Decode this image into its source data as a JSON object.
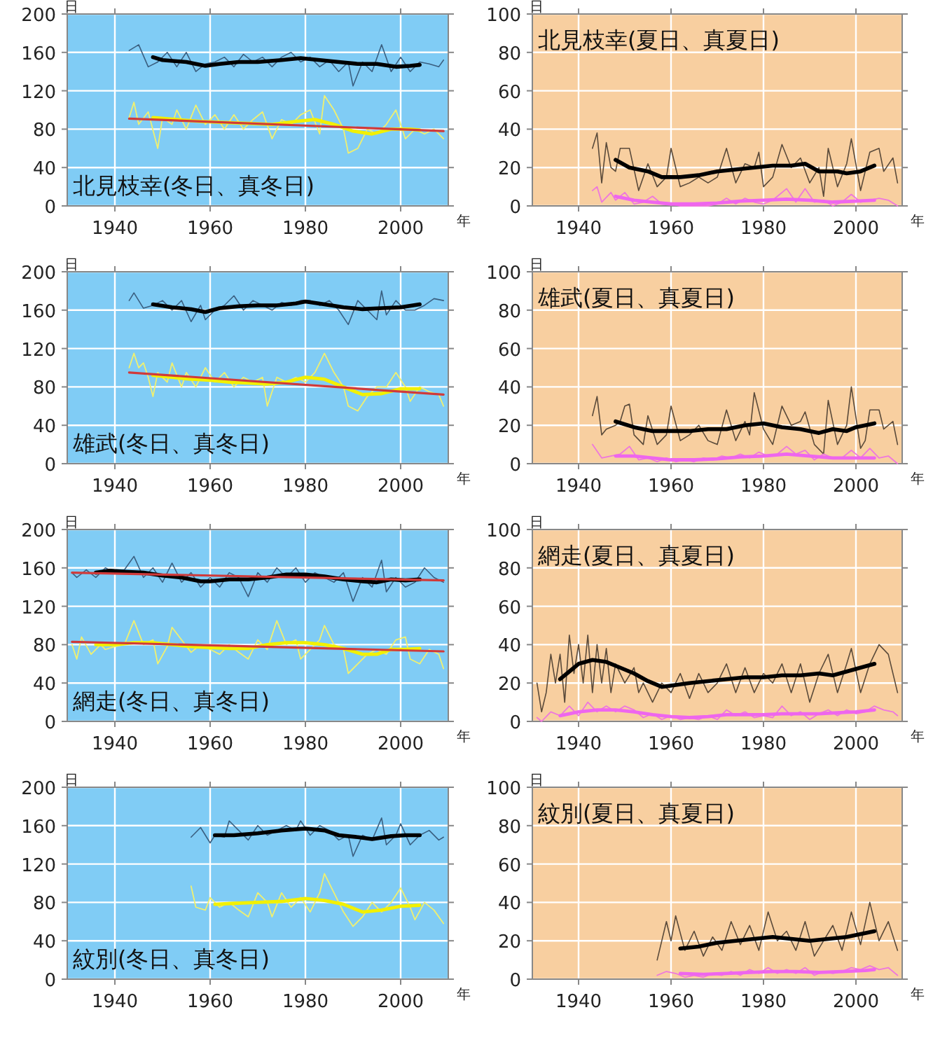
{
  "chart_data": [
    {
      "type": "line",
      "title": "北見枝幸(冬日、真冬日)",
      "xlabel": "年",
      "ylabel": "日",
      "xlim": [
        1930,
        2010
      ],
      "xticks": [
        1940,
        1960,
        1980,
        2000
      ],
      "ylim": [
        0,
        200
      ],
      "yticks": [
        0,
        40,
        80,
        120,
        160,
        200
      ],
      "grid": true,
      "series": [
        {
          "color": "#3a5f80",
          "x": [
            1943,
            1945,
            1947,
            1949,
            1951,
            1953,
            1955,
            1957,
            1959,
            1961,
            1963,
            1965,
            1967,
            1969,
            1971,
            1973,
            1975,
            1977,
            1979,
            1981,
            1983,
            1985,
            1987,
            1989,
            1990,
            1992,
            1994,
            1996,
            1998,
            2000,
            2002,
            2004,
            2006,
            2008,
            2009
          ],
          "values": [
            162,
            168,
            145,
            150,
            160,
            145,
            160,
            140,
            148,
            150,
            155,
            145,
            158,
            150,
            155,
            145,
            155,
            160,
            150,
            155,
            145,
            152,
            140,
            150,
            125,
            150,
            140,
            168,
            140,
            155,
            140,
            150,
            148,
            145,
            152
          ]
        },
        {
          "color": "#000000",
          "x": [
            1948,
            1950,
            1955,
            1959,
            1962,
            1966,
            1970,
            1975,
            1979,
            1983,
            1987,
            1991,
            1995,
            1999,
            2002,
            2004
          ],
          "values": [
            155,
            152,
            150,
            146,
            148,
            150,
            150,
            152,
            154,
            152,
            150,
            148,
            148,
            145,
            146,
            147
          ]
        },
        {
          "color": "#f0f070",
          "x": [
            1943,
            1944,
            1945,
            1947,
            1949,
            1950,
            1952,
            1953,
            1955,
            1957,
            1959,
            1961,
            1963,
            1965,
            1967,
            1969,
            1971,
            1973,
            1975,
            1977,
            1979,
            1981,
            1983,
            1984,
            1986,
            1988,
            1989,
            1991,
            1993,
            1995,
            1997,
            1999,
            2001,
            2003,
            2005,
            2007,
            2009
          ],
          "values": [
            92,
            108,
            85,
            98,
            60,
            92,
            85,
            100,
            80,
            105,
            85,
            95,
            80,
            95,
            80,
            90,
            98,
            70,
            90,
            85,
            95,
            100,
            75,
            115,
            100,
            80,
            55,
            60,
            80,
            75,
            85,
            100,
            70,
            80,
            75,
            80,
            70
          ]
        },
        {
          "color": "#f2f000",
          "x": [
            1948,
            1953,
            1958,
            1963,
            1968,
            1973,
            1978,
            1982,
            1986,
            1990,
            1994,
            1998,
            2002,
            2004
          ],
          "values": [
            92,
            90,
            88,
            87,
            86,
            85,
            88,
            90,
            85,
            78,
            75,
            80,
            80,
            79
          ]
        },
        {
          "color": "#d03a3a",
          "x": [
            1943,
            2009
          ],
          "values": [
            91,
            78
          ]
        }
      ]
    },
    {
      "type": "line",
      "title": "北見枝幸(夏日、真夏日)",
      "xlabel": "年",
      "ylabel": "日",
      "xlim": [
        1930,
        2010
      ],
      "xticks": [
        1940,
        1960,
        1980,
        2000
      ],
      "ylim": [
        0,
        100
      ],
      "yticks": [
        0,
        20,
        40,
        60,
        80,
        100
      ],
      "grid": true,
      "series": [
        {
          "color": "#5a4a3a",
          "x": [
            1943,
            1944,
            1945,
            1946,
            1947,
            1948,
            1949,
            1951,
            1953,
            1955,
            1957,
            1959,
            1960,
            1962,
            1964,
            1966,
            1968,
            1970,
            1972,
            1974,
            1976,
            1978,
            1979,
            1980,
            1982,
            1984,
            1986,
            1988,
            1990,
            1992,
            1993,
            1994,
            1996,
            1998,
            1999,
            2001,
            2003,
            2005,
            2006,
            2008,
            2009
          ],
          "values": [
            30,
            38,
            12,
            33,
            20,
            18,
            30,
            30,
            8,
            22,
            10,
            15,
            30,
            10,
            12,
            15,
            12,
            15,
            30,
            12,
            22,
            20,
            28,
            10,
            15,
            32,
            20,
            25,
            12,
            20,
            5,
            30,
            10,
            22,
            35,
            8,
            28,
            30,
            18,
            25,
            12
          ]
        },
        {
          "color": "#000000",
          "x": [
            1948,
            1951,
            1955,
            1958,
            1962,
            1966,
            1970,
            1974,
            1978,
            1982,
            1986,
            1989,
            1992,
            1996,
            1998,
            2001,
            2004
          ],
          "values": [
            24,
            20,
            18,
            15,
            15,
            16,
            18,
            19,
            20,
            21,
            21,
            22,
            18,
            18,
            17,
            18,
            21
          ]
        },
        {
          "color": "#ee77dd",
          "x": [
            1943,
            1944,
            1945,
            1947,
            1948,
            1950,
            1952,
            1954,
            1956,
            1958,
            1960,
            1962,
            1964,
            1966,
            1968,
            1970,
            1972,
            1974,
            1976,
            1978,
            1980,
            1982,
            1985,
            1987,
            1989,
            1991,
            1993,
            1995,
            1997,
            1999,
            2001,
            2003,
            2005,
            2007,
            2009
          ],
          "values": [
            8,
            10,
            2,
            7,
            3,
            7,
            1,
            2,
            5,
            1,
            1,
            0,
            0,
            0,
            0,
            1,
            4,
            1,
            4,
            2,
            1,
            3,
            9,
            2,
            9,
            2,
            3,
            0,
            2,
            6,
            2,
            3,
            4,
            3,
            0
          ]
        },
        {
          "color": "#ee66ee",
          "x": [
            1948,
            1952,
            1956,
            1960,
            1965,
            1970,
            1975,
            1980,
            1985,
            1990,
            1995,
            2000,
            2004
          ],
          "values": [
            5,
            3,
            2,
            1,
            1,
            1.5,
            2.5,
            3,
            3.5,
            3,
            2,
            2.5,
            3
          ]
        }
      ]
    },
    {
      "type": "line",
      "title": "雄武(冬日、真冬日)",
      "xlabel": "年",
      "ylabel": "日",
      "xlim": [
        1930,
        2010
      ],
      "xticks": [
        1940,
        1960,
        1980,
        2000
      ],
      "ylim": [
        0,
        200
      ],
      "yticks": [
        0,
        40,
        80,
        120,
        160,
        200
      ],
      "grid": true,
      "series": [
        {
          "color": "#3a5f80",
          "x": [
            1943,
            1944,
            1946,
            1948,
            1950,
            1952,
            1954,
            1956,
            1958,
            1959,
            1961,
            1963,
            1965,
            1967,
            1969,
            1971,
            1973,
            1975,
            1977,
            1979,
            1981,
            1983,
            1985,
            1987,
            1989,
            1991,
            1993,
            1995,
            1996,
            1997,
            1999,
            2001,
            2003,
            2005,
            2007,
            2009
          ],
          "values": [
            170,
            178,
            162,
            165,
            170,
            160,
            170,
            148,
            165,
            150,
            160,
            165,
            175,
            160,
            170,
            165,
            160,
            168,
            165,
            170,
            170,
            165,
            170,
            160,
            145,
            170,
            160,
            150,
            180,
            155,
            170,
            160,
            160,
            165,
            172,
            170
          ]
        },
        {
          "color": "#000000",
          "x": [
            1948,
            1952,
            1956,
            1959,
            1962,
            1966,
            1970,
            1974,
            1978,
            1980,
            1984,
            1988,
            1992,
            1996,
            2000,
            2004
          ],
          "values": [
            166,
            163,
            161,
            158,
            162,
            164,
            165,
            165,
            167,
            169,
            166,
            163,
            161,
            162,
            163,
            166
          ]
        },
        {
          "color": "#f0f070",
          "x": [
            1943,
            1944,
            1945,
            1946,
            1947,
            1948,
            1949,
            1951,
            1952,
            1954,
            1955,
            1957,
            1959,
            1961,
            1963,
            1965,
            1967,
            1969,
            1971,
            1972,
            1974,
            1976,
            1978,
            1980,
            1982,
            1984,
            1986,
            1988,
            1989,
            1991,
            1993,
            1995,
            1997,
            1999,
            2001,
            2002,
            2004,
            2006,
            2008,
            2009
          ],
          "values": [
            100,
            115,
            100,
            105,
            90,
            70,
            95,
            85,
            105,
            80,
            95,
            80,
            100,
            85,
            95,
            80,
            90,
            85,
            90,
            60,
            90,
            85,
            90,
            85,
            95,
            115,
            95,
            80,
            60,
            55,
            70,
            80,
            80,
            95,
            80,
            65,
            80,
            75,
            72,
            60
          ]
        },
        {
          "color": "#f2f000",
          "x": [
            1948,
            1952,
            1956,
            1960,
            1964,
            1968,
            1972,
            1976,
            1980,
            1984,
            1988,
            1992,
            1996,
            2000,
            2004
          ],
          "values": [
            92,
            90,
            88,
            87,
            85,
            84,
            83,
            85,
            90,
            88,
            80,
            72,
            73,
            78,
            78
          ]
        },
        {
          "color": "#d03a3a",
          "x": [
            1943,
            2009
          ],
          "values": [
            95,
            72
          ]
        }
      ]
    },
    {
      "type": "line",
      "title": "雄武(夏日、真夏日)",
      "xlabel": "年",
      "ylabel": "日",
      "xlim": [
        1930,
        2010
      ],
      "xticks": [
        1940,
        1960,
        1980,
        2000
      ],
      "ylim": [
        0,
        100
      ],
      "yticks": [
        0,
        20,
        40,
        60,
        80,
        100
      ],
      "grid": true,
      "series": [
        {
          "color": "#5a4a3a",
          "x": [
            1943,
            1944,
            1945,
            1946,
            1948,
            1949,
            1950,
            1951,
            1952,
            1954,
            1955,
            1957,
            1959,
            1960,
            1962,
            1964,
            1966,
            1968,
            1970,
            1972,
            1974,
            1976,
            1977,
            1978,
            1980,
            1982,
            1984,
            1986,
            1988,
            1989,
            1991,
            1993,
            1994,
            1996,
            1998,
            1999,
            2001,
            2002,
            2003,
            2005,
            2006,
            2008,
            2009
          ],
          "values": [
            25,
            35,
            15,
            18,
            20,
            22,
            30,
            31,
            15,
            10,
            25,
            10,
            15,
            30,
            12,
            15,
            20,
            12,
            10,
            28,
            12,
            22,
            15,
            37,
            18,
            10,
            30,
            20,
            22,
            27,
            10,
            5,
            33,
            10,
            20,
            40,
            8,
            12,
            28,
            28,
            18,
            22,
            10
          ]
        },
        {
          "color": "#000000",
          "x": [
            1948,
            1952,
            1956,
            1960,
            1964,
            1968,
            1972,
            1976,
            1980,
            1984,
            1988,
            1992,
            1995,
            1998,
            2000,
            2004
          ],
          "values": [
            22,
            19,
            17,
            17,
            17,
            18,
            18,
            20,
            21,
            19,
            18,
            16,
            18,
            17,
            19,
            21
          ]
        },
        {
          "color": "#ee77dd",
          "x": [
            1943,
            1945,
            1947,
            1949,
            1951,
            1953,
            1955,
            1957,
            1959,
            1961,
            1963,
            1965,
            1967,
            1969,
            1971,
            1973,
            1975,
            1977,
            1979,
            1981,
            1983,
            1985,
            1987,
            1989,
            1991,
            1993,
            1995,
            1997,
            1999,
            2001,
            2003,
            2005,
            2007,
            2009
          ],
          "values": [
            10,
            3,
            4,
            5,
            9,
            2,
            3,
            1,
            3,
            1,
            2,
            1,
            3,
            2,
            4,
            3,
            5,
            3,
            6,
            4,
            5,
            9,
            5,
            7,
            2,
            5,
            3,
            3,
            7,
            3,
            8,
            3,
            4,
            0
          ]
        },
        {
          "color": "#ee66ee",
          "x": [
            1948,
            1952,
            1956,
            1960,
            1965,
            1970,
            1975,
            1980,
            1985,
            1990,
            1995,
            2000,
            2004
          ],
          "values": [
            4,
            4,
            3,
            2,
            2,
            2.5,
            3.5,
            4,
            5,
            4,
            3,
            3,
            3
          ]
        }
      ]
    },
    {
      "type": "line",
      "title": "網走(冬日、真冬日)",
      "xlabel": "年",
      "ylabel": "日",
      "xlim": [
        1930,
        2010
      ],
      "xticks": [
        1940,
        1960,
        1980,
        2000
      ],
      "ylim": [
        0,
        200
      ],
      "yticks": [
        0,
        40,
        80,
        120,
        160,
        200
      ],
      "grid": true,
      "series": [
        {
          "color": "#3a5f80",
          "x": [
            1931,
            1932,
            1934,
            1936,
            1938,
            1940,
            1942,
            1943,
            1944,
            1946,
            1948,
            1950,
            1952,
            1954,
            1956,
            1958,
            1960,
            1962,
            1964,
            1966,
            1968,
            1970,
            1972,
            1974,
            1976,
            1978,
            1980,
            1982,
            1984,
            1986,
            1988,
            1990,
            1992,
            1994,
            1996,
            1997,
            1999,
            2001,
            2003,
            2005,
            2007,
            2009
          ],
          "values": [
            155,
            150,
            158,
            150,
            160,
            155,
            158,
            165,
            172,
            150,
            160,
            145,
            165,
            145,
            155,
            140,
            150,
            140,
            155,
            150,
            130,
            155,
            145,
            160,
            150,
            160,
            145,
            155,
            150,
            145,
            155,
            125,
            150,
            140,
            168,
            135,
            150,
            140,
            145,
            160,
            150,
            145
          ]
        },
        {
          "color": "#000000",
          "x": [
            1936,
            1939,
            1942,
            1946,
            1950,
            1954,
            1958,
            1960,
            1964,
            1968,
            1972,
            1976,
            1980,
            1984,
            1988,
            1992,
            1995,
            1998,
            2001,
            2004
          ],
          "values": [
            155,
            157,
            156,
            155,
            152,
            150,
            146,
            146,
            148,
            148,
            150,
            153,
            153,
            151,
            148,
            146,
            145,
            148,
            147,
            148
          ]
        },
        {
          "color": "#f0f070",
          "x": [
            1931,
            1932,
            1933,
            1935,
            1937,
            1938,
            1940,
            1942,
            1944,
            1946,
            1948,
            1949,
            1951,
            1952,
            1954,
            1956,
            1958,
            1960,
            1962,
            1964,
            1966,
            1968,
            1970,
            1972,
            1974,
            1976,
            1978,
            1979,
            1981,
            1983,
            1984,
            1986,
            1988,
            1989,
            1991,
            1993,
            1995,
            1997,
            1999,
            2001,
            2002,
            2004,
            2006,
            2008,
            2009
          ],
          "values": [
            80,
            65,
            88,
            70,
            80,
            75,
            78,
            80,
            105,
            80,
            85,
            60,
            78,
            98,
            85,
            72,
            80,
            75,
            70,
            80,
            72,
            65,
            85,
            75,
            105,
            80,
            85,
            65,
            75,
            85,
            100,
            80,
            75,
            50,
            60,
            70,
            75,
            70,
            85,
            88,
            65,
            60,
            75,
            70,
            55
          ]
        },
        {
          "color": "#f2f000",
          "x": [
            1936,
            1940,
            1944,
            1948,
            1952,
            1956,
            1960,
            1964,
            1968,
            1972,
            1976,
            1980,
            1984,
            1988,
            1992,
            1995,
            1998,
            2001,
            2004
          ],
          "values": [
            80,
            80,
            82,
            82,
            80,
            78,
            77,
            76,
            76,
            80,
            82,
            82,
            80,
            76,
            70,
            70,
            75,
            75,
            76
          ]
        },
        {
          "color": "#d03a3a",
          "x": [
            1931,
            2009
          ],
          "values": [
            155,
            147
          ]
        },
        {
          "color": "#d03a3a",
          "x": [
            1931,
            2009
          ],
          "values": [
            83,
            73
          ]
        }
      ]
    },
    {
      "type": "line",
      "title": "網走(夏日、真夏日)",
      "xlabel": "年",
      "ylabel": "日",
      "xlim": [
        1930,
        2010
      ],
      "xticks": [
        1940,
        1960,
        1980,
        2000
      ],
      "ylim": [
        0,
        100
      ],
      "yticks": [
        0,
        20,
        40,
        60,
        80,
        100
      ],
      "grid": true,
      "series": [
        {
          "color": "#5a4a3a",
          "x": [
            1931,
            1932,
            1933,
            1934,
            1935,
            1936,
            1937,
            1938,
            1939,
            1940,
            1941,
            1942,
            1943,
            1944,
            1945,
            1946,
            1947,
            1948,
            1950,
            1952,
            1953,
            1954,
            1956,
            1958,
            1960,
            1962,
            1964,
            1966,
            1968,
            1970,
            1972,
            1974,
            1976,
            1978,
            1980,
            1982,
            1984,
            1986,
            1988,
            1990,
            1992,
            1994,
            1996,
            1998,
            1999,
            2001,
            2003,
            2005,
            2007,
            2009
          ],
          "values": [
            20,
            5,
            15,
            35,
            20,
            35,
            10,
            45,
            25,
            40,
            20,
            45,
            15,
            40,
            20,
            38,
            15,
            30,
            20,
            28,
            15,
            20,
            10,
            20,
            15,
            25,
            12,
            25,
            15,
            20,
            30,
            15,
            28,
            15,
            25,
            20,
            30,
            15,
            30,
            10,
            25,
            35,
            15,
            30,
            38,
            15,
            30,
            40,
            35,
            15
          ]
        },
        {
          "color": "#000000",
          "x": [
            1936,
            1938,
            1940,
            1943,
            1946,
            1949,
            1952,
            1955,
            1958,
            1961,
            1964,
            1968,
            1972,
            1976,
            1980,
            1984,
            1988,
            1992,
            1995,
            1998,
            2001,
            2004
          ],
          "values": [
            22,
            26,
            30,
            32,
            31,
            28,
            25,
            21,
            18,
            19,
            20,
            21,
            22,
            23,
            23,
            24,
            24,
            25,
            24,
            26,
            28,
            30
          ]
        },
        {
          "color": "#ee77dd",
          "x": [
            1931,
            1932,
            1934,
            1936,
            1938,
            1940,
            1942,
            1944,
            1946,
            1948,
            1950,
            1952,
            1954,
            1956,
            1958,
            1960,
            1962,
            1964,
            1966,
            1968,
            1970,
            1972,
            1974,
            1976,
            1978,
            1980,
            1982,
            1984,
            1986,
            1988,
            1990,
            1992,
            1994,
            1996,
            1998,
            2000,
            2002,
            2004,
            2006,
            2008,
            2009
          ],
          "values": [
            2,
            0,
            5,
            3,
            8,
            3,
            10,
            5,
            8,
            5,
            8,
            6,
            2,
            4,
            1,
            3,
            1,
            2,
            1,
            3,
            1,
            6,
            3,
            5,
            2,
            3,
            2,
            8,
            3,
            5,
            1,
            4,
            6,
            3,
            6,
            4,
            5,
            8,
            6,
            5,
            3
          ]
        },
        {
          "color": "#ee66ee",
          "x": [
            1936,
            1940,
            1944,
            1948,
            1952,
            1956,
            1960,
            1964,
            1968,
            1972,
            1976,
            1980,
            1984,
            1988,
            1992,
            1996,
            2000,
            2004
          ],
          "values": [
            3,
            5,
            6,
            6,
            5,
            3.5,
            2.5,
            2,
            2.5,
            3.5,
            3.5,
            3.5,
            4,
            4,
            4,
            4.5,
            5,
            6
          ]
        }
      ]
    },
    {
      "type": "line",
      "title": "紋別(冬日、真冬日)",
      "xlabel": "年",
      "ylabel": "日",
      "xlim": [
        1930,
        2010
      ],
      "xticks": [
        1940,
        1960,
        1980,
        2000
      ],
      "ylim": [
        0,
        200
      ],
      "yticks": [
        0,
        40,
        80,
        120,
        160,
        200
      ],
      "grid": true,
      "series": [
        {
          "color": "#3a5f80",
          "x": [
            1956,
            1958,
            1960,
            1961,
            1963,
            1964,
            1966,
            1968,
            1970,
            1972,
            1974,
            1976,
            1978,
            1979,
            1981,
            1983,
            1985,
            1987,
            1989,
            1990,
            1992,
            1994,
            1996,
            1997,
            1999,
            2000,
            2002,
            2004,
            2006,
            2008,
            2009
          ],
          "values": [
            148,
            158,
            142,
            150,
            148,
            165,
            155,
            145,
            160,
            150,
            155,
            160,
            155,
            165,
            150,
            160,
            155,
            145,
            150,
            128,
            150,
            145,
            168,
            140,
            150,
            162,
            140,
            150,
            155,
            145,
            148
          ]
        },
        {
          "color": "#000000",
          "x": [
            1961,
            1965,
            1970,
            1975,
            1980,
            1984,
            1987,
            1991,
            1994,
            1998,
            2001,
            2004
          ],
          "values": [
            150,
            150,
            152,
            155,
            157,
            155,
            150,
            148,
            146,
            149,
            150,
            150
          ]
        },
        {
          "color": "#f0f070",
          "x": [
            1956,
            1957,
            1959,
            1960,
            1962,
            1964,
            1966,
            1968,
            1970,
            1972,
            1973,
            1975,
            1977,
            1979,
            1981,
            1983,
            1984,
            1986,
            1988,
            1990,
            1992,
            1994,
            1996,
            1998,
            2000,
            2002,
            2003,
            2005,
            2007,
            2009
          ],
          "values": [
            97,
            75,
            72,
            85,
            75,
            80,
            72,
            65,
            90,
            80,
            65,
            90,
            75,
            85,
            70,
            90,
            110,
            90,
            70,
            55,
            65,
            80,
            70,
            80,
            95,
            75,
            62,
            80,
            72,
            58
          ]
        },
        {
          "color": "#f2f000",
          "x": [
            1961,
            1965,
            1970,
            1975,
            1980,
            1984,
            1988,
            1992,
            1996,
            2000,
            2004
          ],
          "values": [
            78,
            79,
            80,
            81,
            84,
            82,
            78,
            70,
            72,
            76,
            77
          ]
        }
      ]
    },
    {
      "type": "line",
      "title": "紋別(夏日、真夏日)",
      "xlabel": "年",
      "ylabel": "日",
      "xlim": [
        1930,
        2010
      ],
      "xticks": [
        1940,
        1960,
        1980,
        2000
      ],
      "ylim": [
        0,
        100
      ],
      "yticks": [
        0,
        20,
        40,
        60,
        80,
        100
      ],
      "grid": true,
      "series": [
        {
          "color": "#5a4a3a",
          "x": [
            1957,
            1959,
            1960,
            1961,
            1963,
            1965,
            1967,
            1969,
            1971,
            1973,
            1975,
            1977,
            1979,
            1981,
            1983,
            1985,
            1987,
            1989,
            1991,
            1993,
            1995,
            1997,
            1999,
            2001,
            2003,
            2005,
            2007,
            2009
          ],
          "values": [
            10,
            30,
            20,
            33,
            15,
            25,
            12,
            22,
            15,
            30,
            18,
            28,
            15,
            35,
            20,
            25,
            15,
            30,
            12,
            20,
            28,
            15,
            35,
            18,
            40,
            20,
            30,
            15
          ]
        },
        {
          "color": "#000000",
          "x": [
            1962,
            1966,
            1970,
            1974,
            1978,
            1982,
            1986,
            1990,
            1994,
            1998,
            2002,
            2004
          ],
          "values": [
            16,
            17,
            19,
            20,
            21,
            22,
            21,
            20,
            21,
            22,
            24,
            25
          ]
        },
        {
          "color": "#ee77dd",
          "x": [
            1957,
            1959,
            1961,
            1963,
            1965,
            1967,
            1969,
            1971,
            1973,
            1975,
            1977,
            1979,
            1981,
            1983,
            1985,
            1987,
            1989,
            1991,
            1993,
            1995,
            1997,
            1999,
            2001,
            2003,
            2005,
            2007,
            2009
          ],
          "values": [
            2,
            4,
            3,
            1,
            2,
            1,
            3,
            2,
            4,
            2,
            5,
            3,
            6,
            3,
            5,
            3,
            6,
            2,
            4,
            3,
            4,
            6,
            5,
            7,
            5,
            6,
            2
          ]
        },
        {
          "color": "#ee66ee",
          "x": [
            1962,
            1967,
            1972,
            1977,
            1982,
            1987,
            1992,
            1997,
            2002,
            2004
          ],
          "values": [
            3,
            2.5,
            3,
            3.5,
            4,
            4,
            3.5,
            4,
            4.5,
            5
          ]
        }
      ]
    }
  ]
}
